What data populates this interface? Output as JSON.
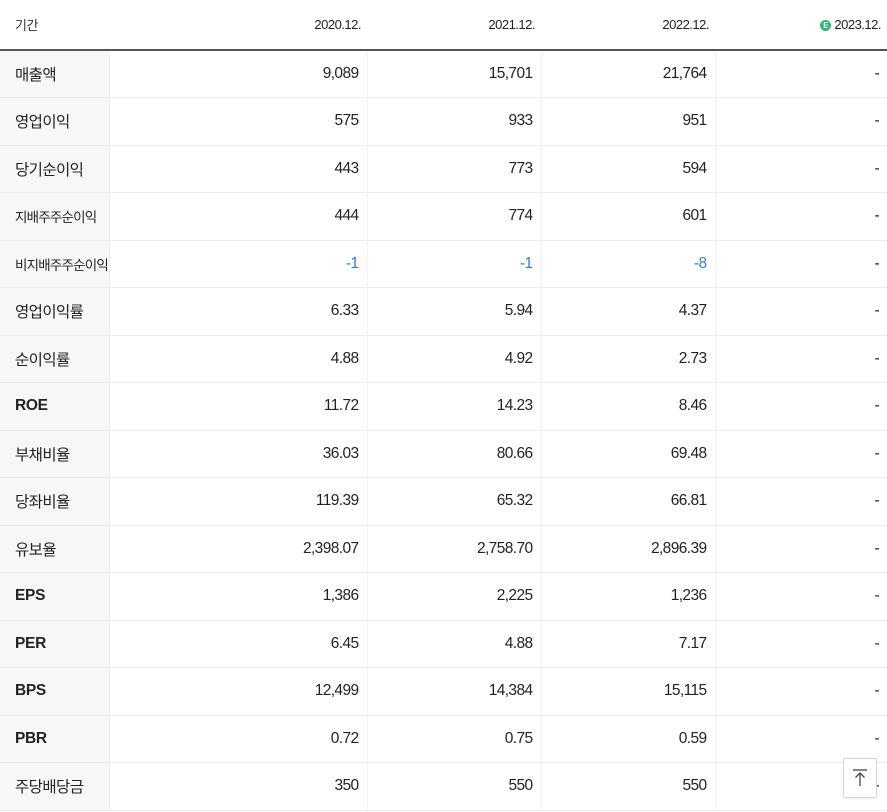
{
  "header": {
    "period_label": "기간",
    "years": [
      "2020.12.",
      "2021.12.",
      "2022.12.",
      "2023.12."
    ],
    "estimate_badge": "E"
  },
  "rows": [
    {
      "label": "매출액",
      "values": [
        "9,089",
        "15,701",
        "21,764",
        "-"
      ]
    },
    {
      "label": "영업이익",
      "values": [
        "575",
        "933",
        "951",
        "-"
      ]
    },
    {
      "label": "당기순이익",
      "values": [
        "443",
        "773",
        "594",
        "-"
      ]
    },
    {
      "label": "지배주주순이익",
      "values": [
        "444",
        "774",
        "601",
        "-"
      ]
    },
    {
      "label": "비지배주주순이익",
      "values": [
        "-1",
        "-1",
        "-8",
        "-"
      ]
    },
    {
      "label": "영업이익률",
      "values": [
        "6.33",
        "5.94",
        "4.37",
        "-"
      ]
    },
    {
      "label": "순이익률",
      "values": [
        "4.88",
        "4.92",
        "2.73",
        "-"
      ]
    },
    {
      "label": "ROE",
      "values": [
        "11.72",
        "14.23",
        "8.46",
        "-"
      ]
    },
    {
      "label": "부채비율",
      "values": [
        "36.03",
        "80.66",
        "69.48",
        "-"
      ]
    },
    {
      "label": "당좌비율",
      "values": [
        "119.39",
        "65.32",
        "66.81",
        "-"
      ]
    },
    {
      "label": "유보율",
      "values": [
        "2,398.07",
        "2,758.70",
        "2,896.39",
        "-"
      ]
    },
    {
      "label": "EPS",
      "values": [
        "1,386",
        "2,225",
        "1,236",
        "-"
      ]
    },
    {
      "label": "PER",
      "values": [
        "6.45",
        "4.88",
        "7.17",
        "-"
      ]
    },
    {
      "label": "BPS",
      "values": [
        "12,499",
        "14,384",
        "15,115",
        "-"
      ]
    },
    {
      "label": "PBR",
      "values": [
        "0.72",
        "0.75",
        "0.59",
        "-"
      ]
    },
    {
      "label": "주당배당금",
      "values": [
        "350",
        "550",
        "550",
        "-"
      ]
    }
  ],
  "colors": {
    "negative": "#2f7fd8",
    "estimate_badge": "#2bb87a",
    "label_bg": "#f7f7f7"
  },
  "icons": {
    "scroll_top": "arrow-up-to-line-icon"
  }
}
